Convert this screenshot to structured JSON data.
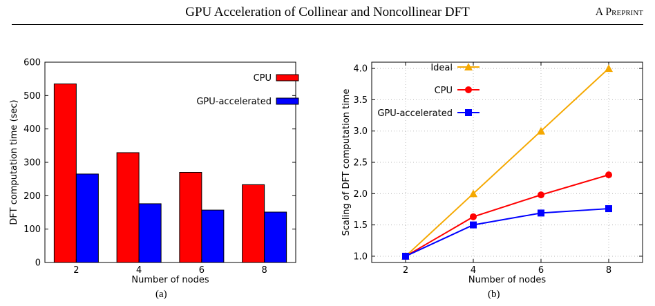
{
  "header": {
    "title": "GPU Acceleration of Collinear and Noncollinear DFT",
    "right": "A Preprint"
  },
  "captions": [
    "(a)",
    "(b)"
  ],
  "chart_data": [
    {
      "type": "bar",
      "categories": [
        "2",
        "4",
        "6",
        "8"
      ],
      "series": [
        {
          "name": "CPU",
          "color": "#ff0000",
          "values": [
            535,
            329,
            270,
            233
          ]
        },
        {
          "name": "GPU-accelerated",
          "color": "#0000ff",
          "values": [
            265,
            176,
            157,
            151
          ]
        }
      ],
      "xlabel": "Number of nodes",
      "ylabel": "DFT computation time (sec)",
      "ylim": [
        0,
        600
      ],
      "yticks": [
        "0",
        "100",
        "200",
        "300",
        "400",
        "500",
        "600"
      ],
      "grid": false,
      "legend": "top-right"
    },
    {
      "type": "line",
      "x": [
        2,
        4,
        6,
        8
      ],
      "xticks": [
        "2",
        "4",
        "6",
        "8"
      ],
      "series": [
        {
          "name": "Ideal",
          "color": "#f5a800",
          "marker": "triangle",
          "values": [
            1.0,
            2.0,
            3.0,
            4.0
          ]
        },
        {
          "name": "CPU",
          "color": "#ff0000",
          "marker": "circle",
          "values": [
            1.0,
            1.63,
            1.98,
            2.3
          ]
        },
        {
          "name": "GPU-accelerated",
          "color": "#0000ff",
          "marker": "square",
          "values": [
            1.0,
            1.5,
            1.69,
            1.76
          ]
        }
      ],
      "xlabel": "Number of nodes",
      "ylabel": "Scaling of DFT computation time",
      "xlim": [
        1,
        9
      ],
      "ylim": [
        0.9,
        4.1
      ],
      "yticks": [
        "1.0",
        "1.5",
        "2.0",
        "2.5",
        "3.0",
        "3.5",
        "4.0"
      ],
      "grid": true,
      "legend": "top-left"
    }
  ]
}
